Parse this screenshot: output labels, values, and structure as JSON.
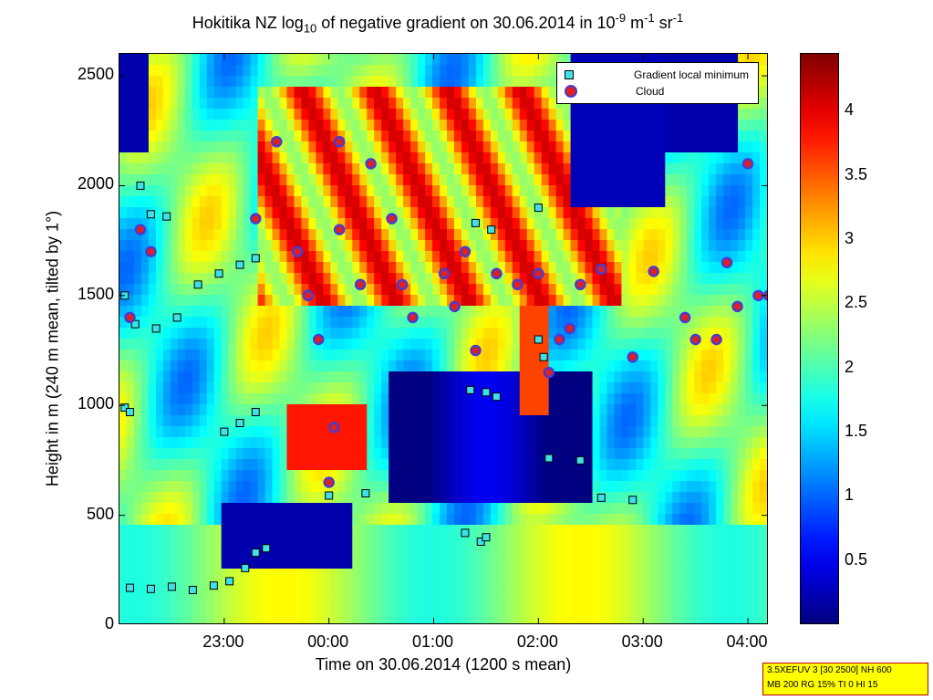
{
  "chart_data": {
    "type": "heatmap",
    "title": "Hokitika NZ log10 of negative gradient on 30.06.2014 in 10-9 m-1 sr-1",
    "title_parts": {
      "a": "Hokitika NZ log",
      "sub": "10",
      "b": " of negative gradient on 30.06.2014 in 10",
      "sup1": "-9",
      "c": " m",
      "sup2": "-1",
      "d": " sr",
      "sup3": "-1"
    },
    "xlabel": "Time on 30.06.2014 (1200 s mean)",
    "ylabel": "Height in m (240 m mean, tilted by 1°)",
    "xlim_hours": [
      22.0,
      28.2
    ],
    "ylim": [
      0,
      2600
    ],
    "x_ticks": [
      {
        "h": 23.0,
        "label": "23:00"
      },
      {
        "h": 24.0,
        "label": "00:00"
      },
      {
        "h": 25.0,
        "label": "01:00"
      },
      {
        "h": 26.0,
        "label": "02:00"
      },
      {
        "h": 27.0,
        "label": "03:00"
      },
      {
        "h": 28.0,
        "label": "04:00"
      }
    ],
    "y_ticks": [
      0,
      500,
      1000,
      1500,
      2000,
      2500
    ],
    "colorbar": {
      "range": [
        0,
        4.45
      ],
      "ticks": [
        "0.5",
        "1",
        "1.5",
        "2",
        "2.5",
        "3",
        "3.5",
        "4"
      ],
      "tick_values": [
        0.5,
        1,
        1.5,
        2,
        2.5,
        3,
        3.5,
        4
      ],
      "colormap": "jet"
    },
    "legend": {
      "position": "top-right",
      "entries": [
        "Gradient local minimum",
        "Cloud"
      ]
    },
    "gradient_local_minimum": [
      [
        22.1,
        170
      ],
      [
        22.3,
        165
      ],
      [
        22.5,
        175
      ],
      [
        22.7,
        160
      ],
      [
        22.9,
        180
      ],
      [
        23.05,
        200
      ],
      [
        23.2,
        260
      ],
      [
        23.3,
        330
      ],
      [
        23.4,
        350
      ],
      [
        22.05,
        1500
      ],
      [
        22.15,
        1370
      ],
      [
        22.35,
        1350
      ],
      [
        22.55,
        1400
      ],
      [
        22.75,
        1550
      ],
      [
        22.95,
        1600
      ],
      [
        23.15,
        1640
      ],
      [
        23.3,
        1670
      ],
      [
        22.05,
        990
      ],
      [
        22.1,
        970
      ],
      [
        23.0,
        880
      ],
      [
        23.15,
        920
      ],
      [
        23.3,
        970
      ],
      [
        22.2,
        2000
      ],
      [
        22.3,
        1870
      ],
      [
        22.45,
        1860
      ],
      [
        24.0,
        590
      ],
      [
        24.35,
        600
      ],
      [
        25.3,
        420
      ],
      [
        25.45,
        380
      ],
      [
        25.5,
        400
      ],
      [
        25.35,
        1070
      ],
      [
        25.5,
        1060
      ],
      [
        25.6,
        1040
      ],
      [
        26.0,
        1300
      ],
      [
        26.05,
        1220
      ],
      [
        26.1,
        760
      ],
      [
        26.4,
        750
      ],
      [
        26.6,
        580
      ],
      [
        26.9,
        570
      ],
      [
        25.4,
        1830
      ],
      [
        25.55,
        1800
      ],
      [
        26.0,
        1900
      ]
    ],
    "cloud": [
      [
        22.1,
        1400
      ],
      [
        22.2,
        1800
      ],
      [
        22.3,
        1700
      ],
      [
        23.3,
        1850
      ],
      [
        23.5,
        2200
      ],
      [
        23.7,
        1700
      ],
      [
        23.8,
        1500
      ],
      [
        23.9,
        1300
      ],
      [
        24.1,
        1800
      ],
      [
        24.1,
        2200
      ],
      [
        24.3,
        1550
      ],
      [
        24.4,
        2100
      ],
      [
        24.6,
        1850
      ],
      [
        24.7,
        1550
      ],
      [
        24.8,
        1400
      ],
      [
        25.1,
        1600
      ],
      [
        25.2,
        1450
      ],
      [
        25.3,
        1700
      ],
      [
        25.4,
        1250
      ],
      [
        25.6,
        1600
      ],
      [
        25.8,
        1550
      ],
      [
        26.0,
        1600
      ],
      [
        26.1,
        1150
      ],
      [
        26.2,
        1300
      ],
      [
        26.3,
        1350
      ],
      [
        26.4,
        1550
      ],
      [
        26.6,
        1620
      ],
      [
        26.9,
        1220
      ],
      [
        27.1,
        1610
      ],
      [
        27.4,
        1400
      ],
      [
        27.5,
        1300
      ],
      [
        27.7,
        1300
      ],
      [
        27.8,
        1650
      ],
      [
        27.9,
        1450
      ],
      [
        28.0,
        2100
      ],
      [
        28.1,
        1500
      ],
      [
        28.2,
        1500
      ],
      [
        24.05,
        900
      ],
      [
        24.0,
        650
      ]
    ]
  },
  "info_box": {
    "line1": "3.5XEFUV 3 [30 2500] NH 600",
    "line2": "MB 200 RG 15% TI 0 HI 15"
  }
}
